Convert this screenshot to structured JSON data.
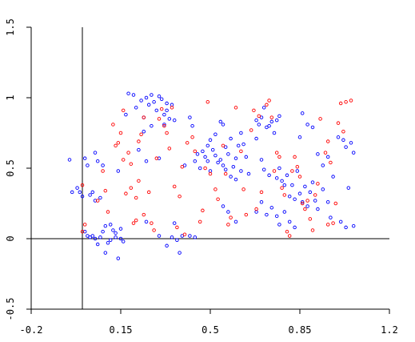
{
  "chart_data": {
    "type": "scatter",
    "title": "",
    "xlabel": "",
    "ylabel": "",
    "xlim": [
      -0.2,
      1.2
    ],
    "ylim": [
      -0.5,
      1.5
    ],
    "x_ticks": [
      "-0.2",
      "0.15",
      "0.5",
      "0.85",
      "1.2"
    ],
    "y_ticks": [
      "-0.5",
      "0",
      "0.5",
      "1",
      "1.5"
    ],
    "grid": false,
    "reference_lines": {
      "x": 0.0,
      "y": 0.0
    },
    "series": [
      {
        "color": "#0000ff",
        "marker": "open-circle",
        "points": [
          [
            -0.05,
            0.56
          ],
          [
            -0.04,
            0.33
          ],
          [
            -0.02,
            0.36
          ],
          [
            -0.01,
            0.33
          ],
          [
            0.0,
            0.3
          ],
          [
            0.01,
            0.57
          ],
          [
            0.02,
            0.52
          ],
          [
            0.03,
            0.31
          ],
          [
            0.04,
            0.33
          ],
          [
            0.05,
            0.61
          ],
          [
            0.06,
            0.55
          ],
          [
            0.05,
            0.27
          ],
          [
            0.07,
            0.29
          ],
          [
            0.08,
            0.52
          ],
          [
            0.01,
            0.05
          ],
          [
            0.02,
            0.02
          ],
          [
            0.03,
            0.01
          ],
          [
            0.04,
            0.02
          ],
          [
            0.05,
            0.0
          ],
          [
            0.06,
            -0.04
          ],
          [
            0.07,
            0.01
          ],
          [
            0.08,
            0.05
          ],
          [
            0.09,
            0.09
          ],
          [
            0.1,
            -0.03
          ],
          [
            0.11,
            -0.01
          ],
          [
            0.12,
            0.06
          ],
          [
            0.13,
            0.01
          ],
          [
            0.14,
            -0.14
          ],
          [
            0.15,
            0.0
          ],
          [
            0.16,
            -0.02
          ],
          [
            0.15,
            0.07
          ],
          [
            0.09,
            -0.1
          ],
          [
            0.11,
            0.1
          ],
          [
            0.13,
            0.04
          ],
          [
            0.14,
            0.48
          ],
          [
            0.17,
            0.88
          ],
          [
            0.18,
            1.03
          ],
          [
            0.2,
            1.02
          ],
          [
            0.21,
            0.93
          ],
          [
            0.23,
            0.98
          ],
          [
            0.24,
            0.86
          ],
          [
            0.25,
            1.0
          ],
          [
            0.26,
            0.95
          ],
          [
            0.27,
            1.02
          ],
          [
            0.28,
            0.97
          ],
          [
            0.29,
            0.91
          ],
          [
            0.3,
            1.01
          ],
          [
            0.31,
            0.99
          ],
          [
            0.32,
            0.88
          ],
          [
            0.33,
            0.91
          ],
          [
            0.34,
            0.85
          ],
          [
            0.35,
            0.95
          ],
          [
            0.27,
            0.8
          ],
          [
            0.24,
            0.76
          ],
          [
            0.22,
            0.63
          ],
          [
            0.25,
            0.55
          ],
          [
            0.3,
            0.57
          ],
          [
            0.32,
            0.81
          ],
          [
            0.36,
            0.84
          ],
          [
            0.33,
            0.96
          ],
          [
            0.25,
            0.12
          ],
          [
            0.3,
            0.02
          ],
          [
            0.33,
            -0.05
          ],
          [
            0.35,
            0.01
          ],
          [
            0.37,
            -0.01
          ],
          [
            0.38,
            -0.1
          ],
          [
            0.39,
            0.02
          ],
          [
            0.42,
            0.02
          ],
          [
            0.44,
            0.01
          ],
          [
            0.36,
            0.11
          ],
          [
            0.4,
            0.52
          ],
          [
            0.42,
            0.86
          ],
          [
            0.43,
            0.8
          ],
          [
            0.44,
            0.55
          ],
          [
            0.45,
            0.6
          ],
          [
            0.46,
            0.5
          ],
          [
            0.47,
            0.62
          ],
          [
            0.48,
            0.58
          ],
          [
            0.49,
            0.66
          ],
          [
            0.5,
            0.7
          ],
          [
            0.51,
            0.63
          ],
          [
            0.52,
            0.59
          ],
          [
            0.53,
            0.54
          ],
          [
            0.54,
            0.56
          ],
          [
            0.55,
            0.52
          ],
          [
            0.56,
            0.65
          ],
          [
            0.57,
            0.6
          ],
          [
            0.58,
            0.71
          ],
          [
            0.59,
            0.51
          ],
          [
            0.6,
            0.57
          ],
          [
            0.61,
            0.66
          ],
          [
            0.62,
            0.75
          ],
          [
            0.63,
            0.67
          ],
          [
            0.64,
            0.58
          ],
          [
            0.65,
            0.46
          ],
          [
            0.52,
            0.74
          ],
          [
            0.54,
            0.83
          ],
          [
            0.55,
            0.81
          ],
          [
            0.5,
            0.48
          ],
          [
            0.49,
            0.55
          ],
          [
            0.56,
            0.49
          ],
          [
            0.58,
            0.44
          ],
          [
            0.6,
            0.42
          ],
          [
            0.62,
            0.48
          ],
          [
            0.57,
            0.19
          ],
          [
            0.6,
            0.12
          ],
          [
            0.55,
            0.23
          ],
          [
            0.68,
            0.84
          ],
          [
            0.69,
            0.81
          ],
          [
            0.7,
            0.86
          ],
          [
            0.71,
            0.93
          ],
          [
            0.72,
            0.79
          ],
          [
            0.73,
            0.8
          ],
          [
            0.74,
            0.83
          ],
          [
            0.75,
            0.75
          ],
          [
            0.76,
            0.84
          ],
          [
            0.77,
            0.87
          ],
          [
            0.68,
            0.71
          ],
          [
            0.7,
            0.56
          ],
          [
            0.71,
            0.49
          ],
          [
            0.73,
            0.45
          ],
          [
            0.76,
            0.43
          ],
          [
            0.77,
            0.5
          ],
          [
            0.78,
            0.41
          ],
          [
            0.79,
            0.38
          ],
          [
            0.8,
            0.45
          ],
          [
            0.81,
            0.3
          ],
          [
            0.82,
            0.38
          ],
          [
            0.83,
            0.28
          ],
          [
            0.84,
            0.48
          ],
          [
            0.85,
            0.32
          ],
          [
            0.86,
            0.26
          ],
          [
            0.87,
            0.37
          ],
          [
            0.88,
            0.23
          ],
          [
            0.89,
            0.33
          ],
          [
            0.9,
            0.4
          ],
          [
            0.91,
            0.27
          ],
          [
            0.92,
            0.21
          ],
          [
            0.68,
            0.19
          ],
          [
            0.7,
            0.26
          ],
          [
            0.72,
            0.17
          ],
          [
            0.74,
            0.22
          ],
          [
            0.76,
            0.16
          ],
          [
            0.77,
            0.1
          ],
          [
            0.79,
            0.19
          ],
          [
            0.81,
            0.12
          ],
          [
            0.83,
            0.08
          ],
          [
            0.85,
            0.72
          ],
          [
            0.86,
            0.89
          ],
          [
            0.88,
            0.81
          ],
          [
            0.9,
            0.79
          ],
          [
            0.92,
            0.6
          ],
          [
            0.94,
            0.52
          ],
          [
            0.96,
            0.58
          ],
          [
            0.98,
            0.44
          ],
          [
            1.0,
            0.72
          ],
          [
            1.02,
            0.7
          ],
          [
            1.03,
            0.65
          ],
          [
            1.05,
            0.68
          ],
          [
            1.06,
            0.61
          ],
          [
            1.04,
            0.36
          ],
          [
            1.01,
            0.12
          ],
          [
            1.03,
            0.08
          ],
          [
            1.06,
            0.09
          ],
          [
            0.94,
            0.35
          ],
          [
            0.96,
            0.26
          ],
          [
            0.97,
            0.15
          ]
        ]
      },
      {
        "color": "#ff0000",
        "marker": "open-circle",
        "points": [
          [
            0.0,
            0.38
          ],
          [
            0.01,
            0.1
          ],
          [
            0.0,
            0.05
          ],
          [
            0.06,
            0.27
          ],
          [
            0.08,
            0.48
          ],
          [
            0.09,
            0.34
          ],
          [
            0.1,
            0.19
          ],
          [
            0.12,
            0.81
          ],
          [
            0.13,
            0.66
          ],
          [
            0.14,
            0.68
          ],
          [
            0.15,
            0.75
          ],
          [
            0.16,
            0.56
          ],
          [
            0.17,
            0.32
          ],
          [
            0.19,
            0.36
          ],
          [
            0.2,
            0.11
          ],
          [
            0.21,
            0.29
          ],
          [
            0.22,
            0.41
          ],
          [
            0.22,
            0.69
          ],
          [
            0.23,
            0.74
          ],
          [
            0.24,
            0.86
          ],
          [
            0.26,
            0.33
          ],
          [
            0.27,
            0.11
          ],
          [
            0.28,
            0.06
          ],
          [
            0.3,
            0.85
          ],
          [
            0.32,
            0.8
          ],
          [
            0.33,
            0.75
          ],
          [
            0.34,
            0.64
          ],
          [
            0.35,
            0.93
          ],
          [
            0.36,
            0.37
          ],
          [
            0.38,
            0.3
          ],
          [
            0.39,
            0.51
          ],
          [
            0.4,
            0.03
          ],
          [
            0.41,
            0.68
          ],
          [
            0.43,
            0.72
          ],
          [
            0.44,
            0.62
          ],
          [
            0.46,
            0.12
          ],
          [
            0.47,
            0.2
          ],
          [
            0.48,
            0.5
          ],
          [
            0.49,
            0.97
          ],
          [
            0.5,
            0.46
          ],
          [
            0.52,
            0.35
          ],
          [
            0.53,
            0.28
          ],
          [
            0.55,
            0.66
          ],
          [
            0.56,
            0.46
          ],
          [
            0.57,
            0.1
          ],
          [
            0.58,
            0.15
          ],
          [
            0.6,
            0.93
          ],
          [
            0.62,
            0.62
          ],
          [
            0.63,
            0.35
          ],
          [
            0.64,
            0.17
          ],
          [
            0.66,
            0.77
          ],
          [
            0.67,
            0.91
          ],
          [
            0.68,
            0.21
          ],
          [
            0.69,
            0.87
          ],
          [
            0.7,
            0.33
          ],
          [
            0.72,
            0.95
          ],
          [
            0.73,
            0.98
          ],
          [
            0.74,
            0.86
          ],
          [
            0.75,
            0.48
          ],
          [
            0.76,
            0.61
          ],
          [
            0.77,
            0.58
          ],
          [
            0.78,
            0.36
          ],
          [
            0.79,
            0.31
          ],
          [
            0.8,
            0.05
          ],
          [
            0.81,
            0.02
          ],
          [
            0.82,
            0.48
          ],
          [
            0.83,
            0.58
          ],
          [
            0.84,
            0.51
          ],
          [
            0.85,
            0.44
          ],
          [
            0.86,
            0.25
          ],
          [
            0.87,
            0.21
          ],
          [
            0.88,
            0.27
          ],
          [
            0.89,
            0.14
          ],
          [
            0.9,
            0.06
          ],
          [
            0.91,
            0.31
          ],
          [
            0.92,
            0.39
          ],
          [
            0.93,
            0.85
          ],
          [
            0.95,
            0.61
          ],
          [
            0.96,
            0.69
          ],
          [
            0.97,
            0.54
          ],
          [
            0.98,
            0.11
          ],
          [
            1.0,
            0.82
          ],
          [
            1.01,
            0.96
          ],
          [
            1.02,
            0.76
          ],
          [
            1.03,
            0.97
          ],
          [
            1.05,
            0.98
          ],
          [
            0.99,
            0.25
          ],
          [
            0.96,
            0.1
          ],
          [
            0.16,
            0.91
          ],
          [
            0.18,
            0.61
          ],
          [
            0.19,
            0.53
          ],
          [
            0.21,
            0.13
          ],
          [
            0.24,
            0.17
          ],
          [
            0.29,
            0.57
          ],
          [
            0.31,
            0.92
          ],
          [
            0.37,
            0.08
          ]
        ]
      }
    ]
  }
}
